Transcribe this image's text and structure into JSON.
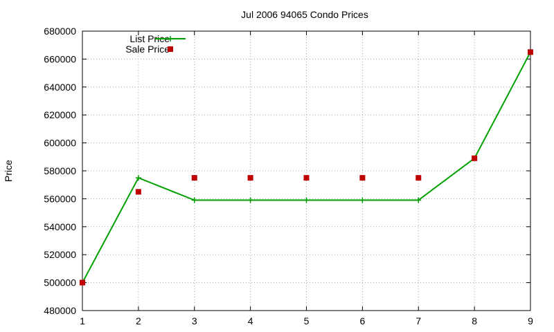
{
  "chart_data": {
    "type": "line",
    "title": "Jul 2006 94065 Condo Prices",
    "xlabel": "",
    "ylabel": "Price",
    "xlim": [
      1,
      9
    ],
    "ylim": [
      480000,
      680000
    ],
    "xticks": [
      1,
      2,
      3,
      4,
      5,
      6,
      7,
      8,
      9
    ],
    "yticks": [
      480000,
      500000,
      520000,
      540000,
      560000,
      580000,
      600000,
      620000,
      640000,
      660000,
      680000
    ],
    "grid": true,
    "legend_position": "top-left",
    "series": [
      {
        "name": "List Price",
        "style": "line+cross",
        "color": "#00a000",
        "x": [
          1,
          2,
          3,
          4,
          5,
          6,
          7,
          8,
          9
        ],
        "y": [
          500000,
          575000,
          559000,
          559000,
          559000,
          559000,
          559000,
          589000,
          665000
        ]
      },
      {
        "name": "Sale Price",
        "style": "square",
        "color": "#c00000",
        "x": [
          1,
          2,
          3,
          4,
          5,
          6,
          7,
          8,
          9
        ],
        "y": [
          500000,
          565000,
          575000,
          575000,
          575000,
          575000,
          575000,
          589000,
          665000
        ]
      }
    ]
  }
}
